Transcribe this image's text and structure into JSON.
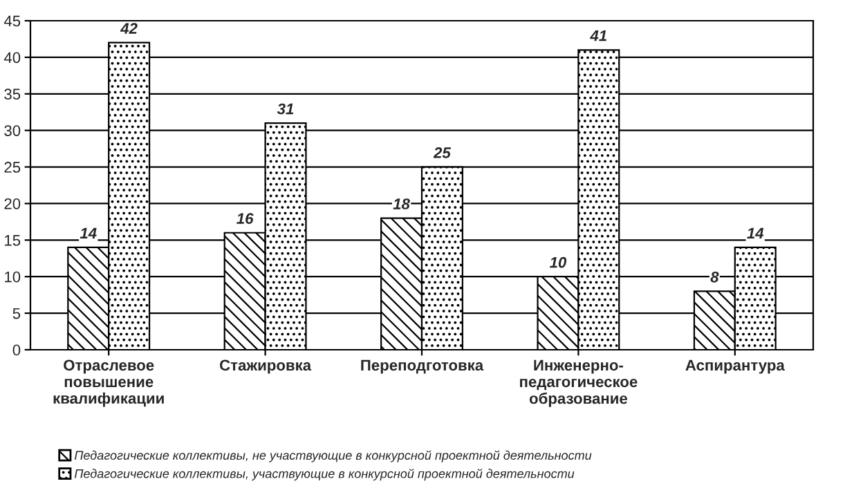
{
  "chart_data": {
    "type": "bar",
    "categories": [
      "Отраслевое\nповышение\nквалификации",
      "Стажировка",
      "Переподготовка",
      "Инженерно-\nпедагогическое\nобразование",
      "Аспирантура"
    ],
    "series": [
      {
        "name": "Педагогические коллективы, не участвующие в конкурсной проектной деятельности",
        "color": "#000000",
        "values": [
          14,
          16,
          18,
          10,
          8
        ]
      },
      {
        "name": "Педагогические коллективы, участвующие в конкурсной проектной деятельности",
        "color": "#000000",
        "values": [
          42,
          31,
          25,
          41,
          14
        ]
      }
    ],
    "ylim": [
      0,
      45
    ],
    "yticks": [
      0,
      5,
      10,
      15,
      20,
      25,
      30,
      35,
      40,
      45
    ],
    "grid": "y",
    "legend": "bottom left",
    "data_labels": true
  }
}
